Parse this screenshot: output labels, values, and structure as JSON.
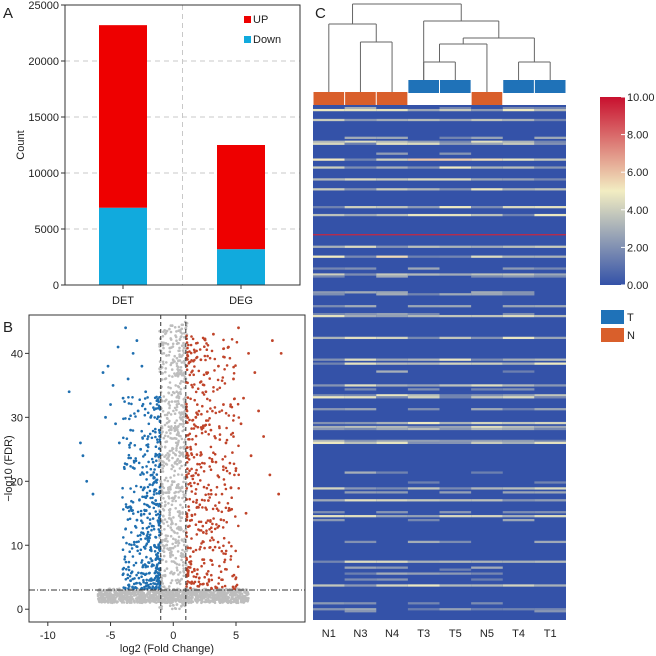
{
  "colors": {
    "up": "#ee0000",
    "down": "#11aadd",
    "volcano_up": "#c0442a",
    "volcano_down": "#1f6fb0",
    "volcano_ns": "#bdbdbd",
    "heat_low": "#3452a8",
    "heat_mid": "#f2edc2",
    "heat_high": "#c8102e",
    "group_T": "#1f72b8",
    "group_N": "#d95f2b"
  },
  "panels": {
    "a": {
      "letter": "A"
    },
    "b": {
      "letter": "B"
    },
    "c": {
      "letter": "C"
    }
  },
  "chart_data": [
    {
      "type": "bar",
      "stacked": true,
      "categories": [
        "DET",
        "DEG"
      ],
      "series": [
        {
          "name": "Down",
          "color": "#11aadd",
          "values": [
            6900,
            3200
          ]
        },
        {
          "name": "UP",
          "color": "#ee0000",
          "values": [
            16300,
            9300
          ]
        }
      ],
      "ylabel": "Count",
      "ylim": [
        0,
        25000
      ],
      "yticks": [
        0,
        5000,
        10000,
        15000,
        20000,
        25000
      ],
      "legend": {
        "placement": "top-right",
        "entries": [
          "UP",
          "Down"
        ]
      },
      "grid": true
    },
    {
      "type": "scatter",
      "xlabel": "log2 (Fold Change)",
      "ylabel": "−log10 (FDR)",
      "xlim": [
        -11.5,
        10.5
      ],
      "ylim": [
        -2,
        46
      ],
      "xticks": [
        -10,
        -5,
        0,
        5
      ],
      "yticks": [
        0,
        10,
        20,
        30,
        40
      ],
      "thresholds": {
        "fold_change": [
          -1,
          1
        ],
        "fdr": 3
      },
      "series": [
        {
          "name": "down",
          "color": "#1f6fb0",
          "points": [
            [
              -8.3,
              34
            ],
            [
              -7.4,
              26
            ],
            [
              -7.2,
              24
            ],
            [
              -6.9,
              20
            ],
            [
              -6.4,
              18
            ],
            [
              -5.6,
              37
            ],
            [
              -5.4,
              30
            ],
            [
              -5.2,
              38
            ],
            [
              -5,
              32
            ],
            [
              -4.8,
              35
            ],
            [
              -4.6,
              29
            ],
            [
              -4.4,
              41
            ],
            [
              -4.3,
              26
            ],
            [
              -4,
              33
            ],
            [
              -3.8,
              44
            ],
            [
              -3.6,
              36
            ],
            [
              -3.4,
              28
            ],
            [
              -3.2,
              40
            ],
            [
              -3.1,
              22
            ],
            [
              -2.9,
              42
            ],
            [
              -2.8,
              31
            ],
            [
              -2.6,
              25
            ],
            [
              -2.5,
              38
            ],
            [
              -2.3,
              19
            ],
            [
              -2.2,
              34
            ],
            [
              -2,
              27
            ],
            [
              -1.9,
              16
            ],
            [
              -1.8,
              30
            ],
            [
              -1.7,
              13
            ],
            [
              -1.6,
              23
            ],
            [
              -1.5,
              10
            ],
            [
              -1.4,
              17
            ],
            [
              -1.3,
              8
            ]
          ]
        },
        {
          "name": "up",
          "color": "#c0442a",
          "points": [
            [
              8.6,
              40
            ],
            [
              8.4,
              18
            ],
            [
              7.9,
              42
            ],
            [
              7.7,
              21
            ],
            [
              7.2,
              27
            ],
            [
              6.8,
              31
            ],
            [
              6.5,
              37
            ],
            [
              6.2,
              24
            ],
            [
              6,
              40
            ],
            [
              5.8,
              15
            ],
            [
              5.6,
              33
            ],
            [
              5.4,
              29
            ],
            [
              5.2,
              44
            ],
            [
              5,
              22
            ],
            [
              4.8,
              36
            ],
            [
              4.6,
              19
            ],
            [
              4.4,
              41
            ],
            [
              4.2,
              26
            ],
            [
              4,
              32
            ],
            [
              3.8,
              14
            ],
            [
              3.6,
              38
            ],
            [
              3.4,
              23
            ],
            [
              3.2,
              43
            ],
            [
              3,
              28
            ],
            [
              2.8,
              17
            ],
            [
              2.6,
              34
            ],
            [
              2.4,
              12
            ],
            [
              2.2,
              39
            ],
            [
              2,
              21
            ],
            [
              1.8,
              30
            ],
            [
              1.6,
              9
            ],
            [
              1.4,
              25
            ],
            [
              1.2,
              6
            ]
          ]
        }
      ]
    },
    {
      "type": "heatmap",
      "columns": [
        "N1",
        "N3",
        "N4",
        "T3",
        "T5",
        "N5",
        "T4",
        "T1"
      ],
      "groups": [
        "N",
        "N",
        "N",
        "T",
        "T",
        "N",
        "T",
        "T"
      ],
      "colorbar": {
        "min": 0,
        "max": 10,
        "ticks": [
          "0.00",
          "2.00",
          "4.00",
          "6.00",
          "8.00",
          "10.00"
        ]
      },
      "group_legend": [
        {
          "label": "T",
          "color": "#1f72b8"
        },
        {
          "label": "N",
          "color": "#d95f2b"
        }
      ]
    }
  ]
}
